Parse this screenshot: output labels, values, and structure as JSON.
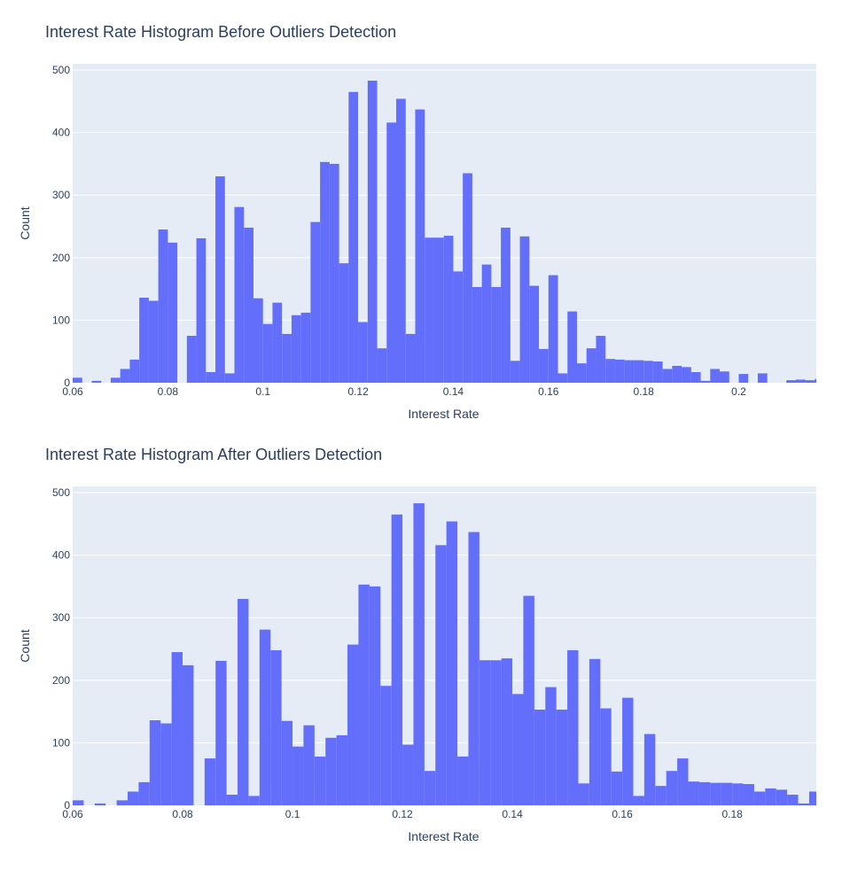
{
  "chart_data": [
    {
      "type": "bar",
      "title": "Interest Rate Histogram Before Outliers Detection",
      "xlabel": "Interest Rate",
      "ylabel": "Count",
      "xlim": [
        0.06,
        0.2163
      ],
      "ylim": [
        0,
        510
      ],
      "xticks": [
        "0.06",
        "0.08",
        "0.1",
        "0.12",
        "0.14",
        "0.16",
        "0.18",
        "0.2"
      ],
      "yticks": [
        "0",
        "100",
        "200",
        "300",
        "400",
        "500"
      ],
      "grid": true,
      "bin_start": 0.06,
      "bin_width": 0.002,
      "values": [
        8,
        0,
        3,
        0,
        8,
        22,
        37,
        136,
        131,
        245,
        224,
        0,
        75,
        231,
        17,
        330,
        15,
        281,
        248,
        135,
        94,
        128,
        78,
        108,
        112,
        257,
        353,
        350,
        191,
        465,
        97,
        483,
        55,
        416,
        454,
        78,
        437,
        232,
        232,
        235,
        178,
        335,
        153,
        189,
        153,
        248,
        35,
        234,
        155,
        54,
        172,
        15,
        114,
        31,
        55,
        75,
        38,
        37,
        36,
        36,
        35,
        34,
        22,
        27,
        25,
        17,
        3,
        22,
        18,
        0,
        14,
        0,
        15,
        0,
        0,
        4,
        5,
        4,
        6,
        0,
        3
      ]
    },
    {
      "type": "bar",
      "title": "Interest Rate Histogram After Outliers Detection",
      "xlabel": "Interest Rate",
      "ylabel": "Count",
      "xlim": [
        0.06,
        0.1953
      ],
      "ylim": [
        0,
        510
      ],
      "xticks": [
        "0.06",
        "0.08",
        "0.1",
        "0.12",
        "0.14",
        "0.16",
        "0.18"
      ],
      "yticks": [
        "0",
        "100",
        "200",
        "300",
        "400",
        "500"
      ],
      "grid": true,
      "bin_start": 0.06,
      "bin_width": 0.002,
      "values": [
        8,
        0,
        3,
        0,
        8,
        22,
        37,
        136,
        131,
        245,
        224,
        0,
        75,
        231,
        17,
        330,
        15,
        281,
        248,
        135,
        94,
        128,
        78,
        108,
        112,
        257,
        353,
        350,
        191,
        465,
        97,
        483,
        55,
        416,
        454,
        78,
        437,
        232,
        232,
        235,
        178,
        335,
        153,
        189,
        153,
        248,
        35,
        234,
        155,
        54,
        172,
        15,
        114,
        31,
        55,
        75,
        38,
        37,
        36,
        36,
        35,
        34,
        22,
        27,
        25,
        17,
        3,
        22,
        18
      ]
    }
  ],
  "style": {
    "bar_color": "#636efa",
    "plot_bg": "#e5ecf6",
    "grid_color": "#ffffff",
    "text_color": "#2a3f5f"
  }
}
